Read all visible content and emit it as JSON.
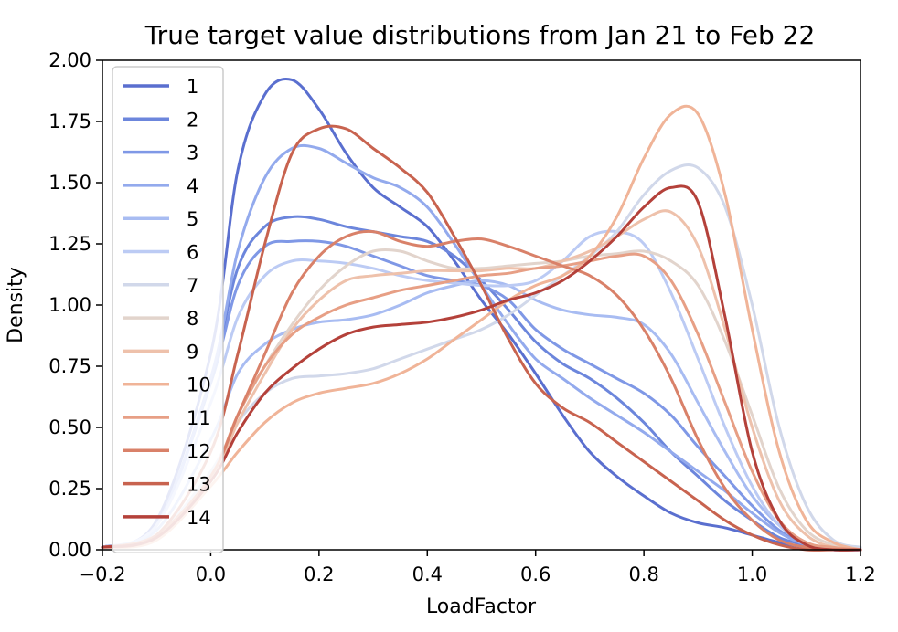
{
  "chart_data": {
    "type": "line",
    "title": "True target value distributions from Jan 21 to Feb 22",
    "xlabel": "LoadFactor",
    "ylabel": "Density",
    "xlim": [
      -0.2,
      1.2
    ],
    "ylim": [
      0,
      2.0
    ],
    "x_ticks": [
      -0.2,
      0.0,
      0.2,
      0.4,
      0.6,
      0.8,
      1.0,
      1.2
    ],
    "x_tick_labels": [
      "−0.2",
      "0.0",
      "0.2",
      "0.4",
      "0.6",
      "0.8",
      "1.0",
      "1.2"
    ],
    "y_ticks": [
      0,
      0.25,
      0.5,
      0.75,
      1.0,
      1.25,
      1.5,
      1.75,
      2.0
    ],
    "y_tick_labels": [
      "0.00",
      "0.25",
      "0.50",
      "0.75",
      "1.00",
      "1.25",
      "1.50",
      "1.75",
      "2.00"
    ],
    "grid": false,
    "legend_position": "top-left",
    "x": [
      -0.2,
      -0.1,
      0.0,
      0.05,
      0.1,
      0.15,
      0.2,
      0.25,
      0.3,
      0.35,
      0.4,
      0.45,
      0.5,
      0.55,
      0.6,
      0.65,
      0.7,
      0.75,
      0.8,
      0.85,
      0.9,
      0.95,
      1.0,
      1.05,
      1.1,
      1.15,
      1.2
    ],
    "series": [
      {
        "name": "1",
        "color": "#5a6fcf",
        "values": [
          0.01,
          0.12,
          0.8,
          1.55,
          1.86,
          1.92,
          1.8,
          1.62,
          1.48,
          1.4,
          1.32,
          1.18,
          1.02,
          0.88,
          0.72,
          0.55,
          0.4,
          0.3,
          0.22,
          0.15,
          0.11,
          0.09,
          0.06,
          0.03,
          0.01,
          0.0,
          0.0
        ]
      },
      {
        "name": "2",
        "color": "#6c86dc",
        "values": [
          0.01,
          0.1,
          0.7,
          1.15,
          1.32,
          1.36,
          1.35,
          1.32,
          1.3,
          1.28,
          1.26,
          1.2,
          1.1,
          0.98,
          0.85,
          0.76,
          0.7,
          0.62,
          0.52,
          0.4,
          0.3,
          0.2,
          0.12,
          0.05,
          0.02,
          0.0,
          0.0
        ]
      },
      {
        "name": "3",
        "color": "#7f98e6",
        "values": [
          0.01,
          0.1,
          0.68,
          1.08,
          1.24,
          1.26,
          1.26,
          1.24,
          1.2,
          1.16,
          1.12,
          1.1,
          1.08,
          1.02,
          0.9,
          0.82,
          0.76,
          0.7,
          0.64,
          0.55,
          0.42,
          0.3,
          0.18,
          0.08,
          0.02,
          0.0,
          0.0
        ]
      },
      {
        "name": "4",
        "color": "#93aaed",
        "values": [
          0.01,
          0.1,
          0.7,
          1.22,
          1.52,
          1.64,
          1.64,
          1.58,
          1.52,
          1.48,
          1.4,
          1.25,
          1.08,
          0.92,
          0.78,
          0.7,
          0.62,
          0.55,
          0.48,
          0.4,
          0.32,
          0.24,
          0.15,
          0.07,
          0.02,
          0.0,
          0.0
        ]
      },
      {
        "name": "5",
        "color": "#a8bcf2",
        "values": [
          0.01,
          0.08,
          0.45,
          0.72,
          0.84,
          0.9,
          0.93,
          0.94,
          0.96,
          1.0,
          1.05,
          1.08,
          1.1,
          1.08,
          1.02,
          0.98,
          0.96,
          0.95,
          0.92,
          0.8,
          0.6,
          0.4,
          0.22,
          0.1,
          0.03,
          0.0,
          0.0
        ]
      },
      {
        "name": "6",
        "color": "#bccbf4",
        "values": [
          0.01,
          0.1,
          0.6,
          0.95,
          1.12,
          1.18,
          1.18,
          1.17,
          1.15,
          1.12,
          1.1,
          1.09,
          1.08,
          1.08,
          1.1,
          1.18,
          1.28,
          1.3,
          1.25,
          1.05,
          0.78,
          0.5,
          0.26,
          0.1,
          0.03,
          0.0,
          0.0
        ]
      },
      {
        "name": "7",
        "color": "#d1d8ea",
        "values": [
          0.01,
          0.06,
          0.32,
          0.52,
          0.64,
          0.7,
          0.71,
          0.72,
          0.74,
          0.78,
          0.82,
          0.86,
          0.9,
          0.96,
          1.04,
          1.12,
          1.2,
          1.3,
          1.45,
          1.55,
          1.56,
          1.4,
          1.0,
          0.5,
          0.18,
          0.04,
          0.01
        ]
      },
      {
        "name": "8",
        "color": "#e2d4cc",
        "values": [
          0.01,
          0.05,
          0.3,
          0.55,
          0.75,
          0.92,
          1.06,
          1.16,
          1.22,
          1.22,
          1.18,
          1.15,
          1.15,
          1.16,
          1.17,
          1.18,
          1.2,
          1.21,
          1.22,
          1.18,
          1.08,
          0.85,
          0.55,
          0.25,
          0.08,
          0.02,
          0.0
        ]
      },
      {
        "name": "9",
        "color": "#eec1ab",
        "values": [
          0.01,
          0.04,
          0.28,
          0.52,
          0.72,
          0.9,
          1.02,
          1.1,
          1.12,
          1.13,
          1.14,
          1.14,
          1.14,
          1.15,
          1.15,
          1.18,
          1.22,
          1.28,
          1.35,
          1.38,
          1.24,
          0.9,
          0.5,
          0.2,
          0.06,
          0.01,
          0.0
        ]
      },
      {
        "name": "10",
        "color": "#f0b498",
        "values": [
          0.01,
          0.04,
          0.26,
          0.4,
          0.52,
          0.6,
          0.64,
          0.66,
          0.68,
          0.72,
          0.78,
          0.86,
          0.94,
          1.02,
          1.08,
          1.12,
          1.2,
          1.36,
          1.6,
          1.78,
          1.78,
          1.45,
          0.9,
          0.4,
          0.12,
          0.03,
          0.0
        ]
      },
      {
        "name": "11",
        "color": "#e79f85",
        "values": [
          0.01,
          0.05,
          0.3,
          0.55,
          0.75,
          0.88,
          0.95,
          1.0,
          1.03,
          1.06,
          1.08,
          1.1,
          1.12,
          1.13,
          1.15,
          1.16,
          1.18,
          1.2,
          1.2,
          1.1,
          0.88,
          0.6,
          0.32,
          0.12,
          0.03,
          0.01,
          0.0
        ]
      },
      {
        "name": "12",
        "color": "#d98169",
        "values": [
          0.01,
          0.06,
          0.3,
          0.55,
          0.8,
          1.05,
          1.2,
          1.28,
          1.3,
          1.26,
          1.24,
          1.26,
          1.27,
          1.24,
          1.2,
          1.16,
          1.12,
          1.04,
          0.9,
          0.7,
          0.45,
          0.25,
          0.12,
          0.04,
          0.01,
          0.0,
          0.0
        ]
      },
      {
        "name": "13",
        "color": "#c8634f",
        "values": [
          0.01,
          0.06,
          0.4,
          0.8,
          1.25,
          1.62,
          1.72,
          1.72,
          1.64,
          1.56,
          1.46,
          1.28,
          1.08,
          0.86,
          0.68,
          0.58,
          0.52,
          0.44,
          0.36,
          0.28,
          0.2,
          0.12,
          0.06,
          0.02,
          0.0,
          0.0,
          0.0
        ]
      },
      {
        "name": "14",
        "color": "#b4413a",
        "values": [
          0.01,
          0.05,
          0.28,
          0.48,
          0.64,
          0.74,
          0.82,
          0.88,
          0.91,
          0.92,
          0.93,
          0.95,
          0.98,
          1.02,
          1.05,
          1.1,
          1.18,
          1.28,
          1.4,
          1.48,
          1.42,
          0.95,
          0.4,
          0.12,
          0.02,
          0.0,
          0.0
        ]
      }
    ]
  }
}
